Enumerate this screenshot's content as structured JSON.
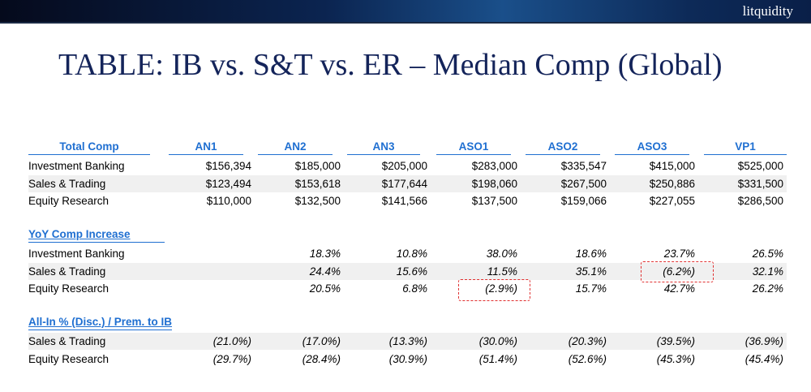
{
  "brand": "litquidity",
  "title": "TABLE: IB vs. S&T vs. ER – Median Comp (Global)",
  "columns": [
    "Total Comp",
    "AN1",
    "AN2",
    "AN3",
    "ASO1",
    "ASO2",
    "ASO3",
    "VP1"
  ],
  "total_comp": [
    {
      "label": "Investment Banking",
      "values": [
        "$156,394",
        "$185,000",
        "$205,000",
        "$283,000",
        "$335,547",
        "$415,000",
        "$525,000"
      ]
    },
    {
      "label": "Sales & Trading",
      "values": [
        "$123,494",
        "$153,618",
        "$177,644",
        "$198,060",
        "$267,500",
        "$250,886",
        "$331,500"
      ]
    },
    {
      "label": "Equity Research",
      "values": [
        "$110,000",
        "$132,500",
        "$141,566",
        "$137,500",
        "$159,066",
        "$227,055",
        "$286,500"
      ]
    }
  ],
  "yoy": {
    "title": "YoY Comp Increase",
    "rows": [
      {
        "label": "Investment Banking",
        "values": [
          "",
          "18.3%",
          "10.8%",
          "38.0%",
          "18.6%",
          "23.7%",
          "26.5%"
        ]
      },
      {
        "label": "Sales & Trading",
        "values": [
          "",
          "24.4%",
          "15.6%",
          "11.5%",
          "35.1%",
          "(6.2%)",
          "32.1%"
        ]
      },
      {
        "label": "Equity Research",
        "values": [
          "",
          "20.5%",
          "6.8%",
          "(2.9%)",
          "15.7%",
          "42.7%",
          "26.2%"
        ]
      }
    ]
  },
  "allin": {
    "title": "All-In % (Disc.) / Prem. to IB",
    "rows": [
      {
        "label": "Sales & Trading",
        "values": [
          "(21.0%)",
          "(17.0%)",
          "(13.3%)",
          "(30.0%)",
          "(20.3%)",
          "(39.5%)",
          "(36.9%)"
        ]
      },
      {
        "label": "Equity Research",
        "values": [
          "(29.7%)",
          "(28.4%)",
          "(30.9%)",
          "(51.4%)",
          "(52.6%)",
          "(45.3%)",
          "(45.4%)"
        ]
      }
    ]
  }
}
